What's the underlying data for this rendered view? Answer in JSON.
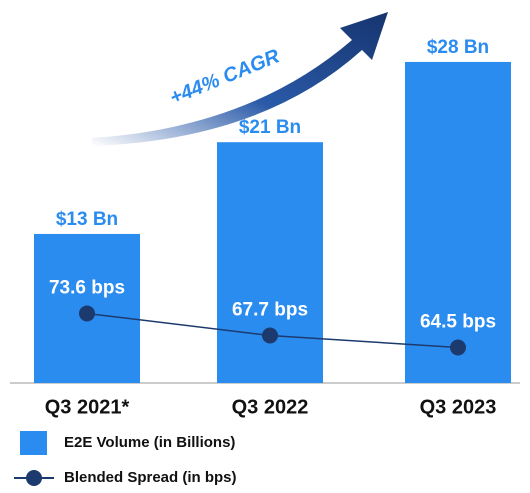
{
  "chart_data": {
    "type": "bar",
    "annotation": "+44% CAGR",
    "categories": [
      "Q3 2021*",
      "Q3 2022",
      "Q3 2023"
    ],
    "series": [
      {
        "name": "E2E Volume (in Billions)",
        "type": "bar",
        "color": "#2b8cf0",
        "values": [
          13,
          21,
          28
        ],
        "value_labels": [
          "$13 Bn",
          "$21 Bn",
          "$28 Bn"
        ]
      },
      {
        "name": "Blended Spread (in bps)",
        "type": "line",
        "axis": "y2",
        "color": "#1c3a6e",
        "values": [
          73.6,
          67.7,
          64.5
        ],
        "value_labels": [
          "73.6 bps",
          "67.7 bps",
          "64.5 bps"
        ]
      }
    ],
    "ylim": [
      0,
      30
    ],
    "y2lim": [
      55,
      147
    ]
  }
}
